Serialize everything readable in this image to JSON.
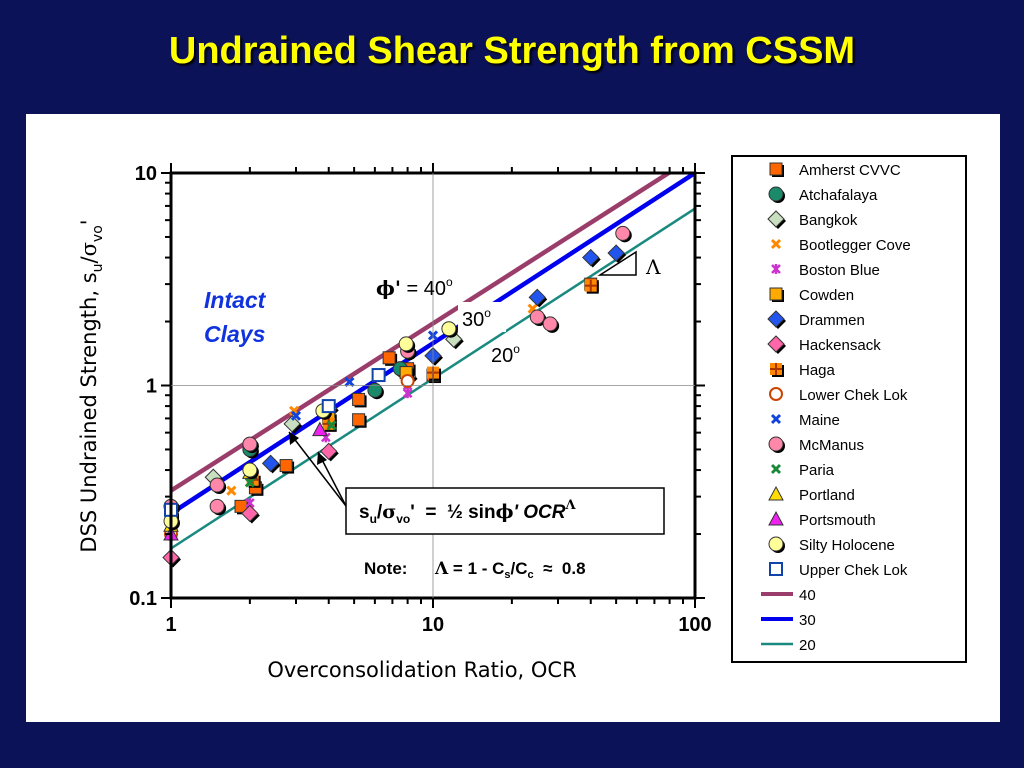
{
  "slide": {
    "title": "Undrained Shear Strength from CSSM"
  },
  "chart_data": {
    "type": "scatter",
    "xlabel": "Overconsolidation Ratio, OCR",
    "ylabel_parts": [
      "DSS Undrained Strength, s",
      "u",
      "/",
      "σ",
      "vo",
      "'"
    ],
    "x_scale": "log",
    "y_scale": "log",
    "xlim": [
      1,
      100
    ],
    "ylim": [
      0.1,
      10
    ],
    "x_ticks": [
      "1",
      "10",
      "100"
    ],
    "y_ticks": [
      "0.1",
      "1",
      "10"
    ],
    "grid": true,
    "legend_position": "right",
    "annotations": {
      "intact": [
        "Intact",
        "Clays"
      ],
      "phi": [
        "ϕ'",
        " = 40",
        "o"
      ],
      "deg30": [
        "30",
        "o"
      ],
      "deg20": [
        "20",
        "o"
      ],
      "slope_symbol": "Λ",
      "formula": [
        "s",
        "u",
        "/",
        "σ",
        "vo",
        "'",
        "  =  ½ sin",
        "ϕ",
        "' OCR",
        "Λ"
      ],
      "note": [
        "Note:",
        "Λ",
        " = 1 - C",
        "s",
        "/C",
        "c",
        "  ≈  0.8"
      ]
    },
    "lines": [
      {
        "name": "40",
        "color": "#9b3d6a",
        "ocr": [
          1,
          100
        ],
        "su": [
          0.32,
          12.0
        ]
      },
      {
        "name": "30",
        "color": "#0000ee",
        "ocr": [
          1,
          100
        ],
        "su": [
          0.25,
          10.0
        ]
      },
      {
        "name": "20",
        "color": "#1a8a80",
        "ocr": [
          1,
          100
        ],
        "su": [
          0.171,
          6.8
        ]
      }
    ],
    "series": [
      {
        "name": "Amherst CVVC",
        "marker": "square",
        "color": "#ff6600",
        "points": [
          [
            1.85,
            0.27
          ],
          [
            2.1,
            0.33
          ],
          [
            2.75,
            0.42
          ],
          [
            5.2,
            0.86
          ],
          [
            5.2,
            0.69
          ],
          [
            6.8,
            1.35
          ],
          [
            8,
            1.2
          ],
          [
            10,
            1.12
          ],
          [
            40,
            3.0
          ]
        ]
      },
      {
        "name": "Atchafalaya",
        "marker": "circle",
        "color": "#1a8a6a",
        "points": [
          [
            2,
            0.5
          ],
          [
            6,
            0.95
          ],
          [
            7.5,
            1.2
          ]
        ]
      },
      {
        "name": "Bangkok",
        "marker": "diamond",
        "color": "#c8e0c0",
        "points": [
          [
            1.45,
            0.37
          ],
          [
            2.9,
            0.66
          ],
          [
            4,
            0.78
          ],
          [
            8,
            1.1
          ],
          [
            12,
            1.65
          ]
        ]
      },
      {
        "name": "Bootlegger Cove",
        "marker": "x",
        "color": "#ff8800",
        "points": [
          [
            1.7,
            0.32
          ],
          [
            2.95,
            0.76
          ],
          [
            24,
            2.3
          ]
        ]
      },
      {
        "name": "Boston Blue",
        "marker": "asterisk",
        "color": "#cc33cc",
        "points": [
          [
            1,
            0.2
          ],
          [
            2,
            0.28
          ],
          [
            3.9,
            0.57
          ],
          [
            8,
            0.92
          ],
          [
            8,
            1.0
          ]
        ]
      },
      {
        "name": "Cowden",
        "marker": "square",
        "color": "#ffaa00",
        "points": [
          [
            1,
            0.24
          ],
          [
            4,
            0.7
          ],
          [
            7.9,
            1.15
          ]
        ]
      },
      {
        "name": "Drammen",
        "marker": "diamond",
        "color": "#2255ee",
        "points": [
          [
            2.4,
            0.43
          ],
          [
            10,
            1.38
          ],
          [
            25,
            2.6
          ],
          [
            40,
            4.0
          ],
          [
            50,
            4.2
          ]
        ]
      },
      {
        "name": "Hackensack",
        "marker": "diamond",
        "color": "#ff66aa",
        "points": [
          [
            1,
            0.155
          ],
          [
            2,
            0.25
          ],
          [
            4,
            0.49
          ]
        ]
      },
      {
        "name": "Haga",
        "marker": "plus",
        "color": "#ff8800",
        "points": [
          [
            2.05,
            0.36
          ],
          [
            4,
            0.66
          ],
          [
            10,
            1.15
          ],
          [
            40,
            2.95
          ]
        ]
      },
      {
        "name": "Lower Chek Lok",
        "marker": "circle-open",
        "color": "#cc4400",
        "points": [
          [
            1,
            0.2
          ],
          [
            8,
            1.05
          ]
        ]
      },
      {
        "name": "Maine",
        "marker": "x",
        "color": "#1144dd",
        "points": [
          [
            3,
            0.72
          ],
          [
            4.8,
            1.04
          ],
          [
            10,
            1.72
          ]
        ]
      },
      {
        "name": "McManus",
        "marker": "circle",
        "color": "#ff88aa",
        "points": [
          [
            1,
            0.27
          ],
          [
            1.5,
            0.27
          ],
          [
            1.5,
            0.34
          ],
          [
            2,
            0.53
          ],
          [
            8,
            1.45
          ],
          [
            25,
            2.1
          ],
          [
            28,
            1.95
          ],
          [
            53,
            5.2
          ]
        ]
      },
      {
        "name": "Paria",
        "marker": "x",
        "color": "#1a8a3a",
        "points": [
          [
            1,
            0.22
          ],
          [
            2,
            0.35
          ],
          [
            4.1,
            0.65
          ]
        ]
      },
      {
        "name": "Portland",
        "marker": "triangle",
        "color": "#ffdd00",
        "points": [
          [
            1,
            0.22
          ],
          [
            2,
            0.39
          ]
        ]
      },
      {
        "name": "Portsmouth",
        "marker": "triangle",
        "color": "#ee22ee",
        "points": [
          [
            1,
            0.2
          ],
          [
            3.7,
            0.62
          ]
        ]
      },
      {
        "name": "Silty Holocene",
        "marker": "circle",
        "color": "#ffff99",
        "points": [
          [
            1,
            0.23
          ],
          [
            2,
            0.4
          ],
          [
            3.8,
            0.76
          ],
          [
            7.9,
            1.57
          ],
          [
            11.5,
            1.85
          ]
        ]
      },
      {
        "name": "Upper Chek Lok",
        "marker": "square-open",
        "color": "#1144aa",
        "points": [
          [
            1,
            0.26
          ],
          [
            4,
            0.8
          ],
          [
            6.2,
            1.12
          ]
        ]
      }
    ]
  }
}
